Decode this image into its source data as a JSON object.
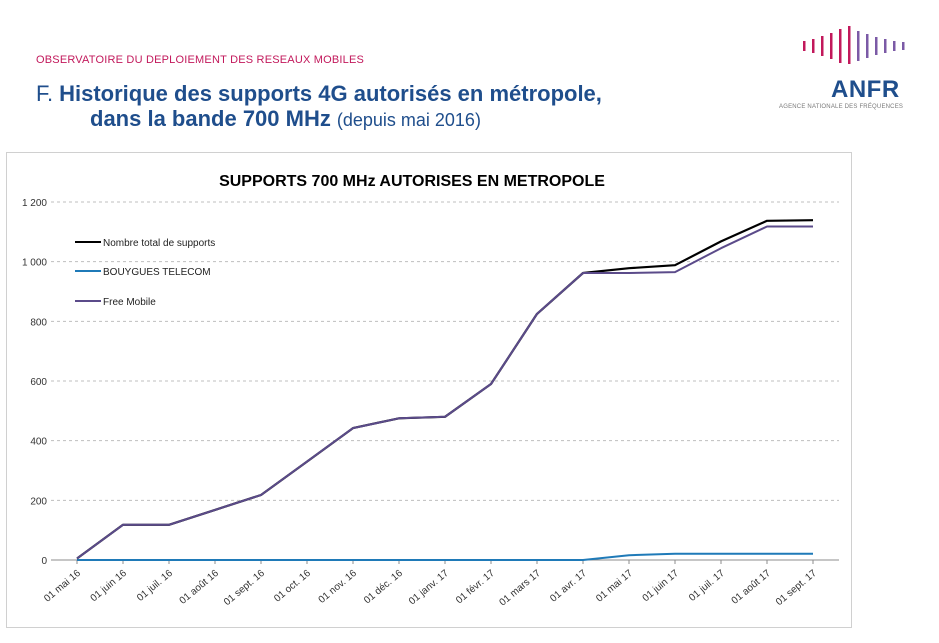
{
  "header": {
    "kicker": "OBSERVATOIRE DU DEPLOIEMENT DES RESEAUX MOBILES",
    "letter": "F.",
    "title_line1": "Historique des supports 4G autorisés en métropole,",
    "title_line2": "dans la bande 700 MHz",
    "title_suffix": "(depuis mai 2016)"
  },
  "logo": {
    "brand": "ANFR",
    "subtitle": "AGENCE NATIONALE DES FRÉQUENCES",
    "bar_color_left": "#c2185b",
    "bar_color_right": "#7b5aa6"
  },
  "colors": {
    "accent": "#c2185b",
    "title": "#1f4e8c",
    "total": "#000000",
    "bouygues": "#1f7ab8",
    "free": "#5b4b8a",
    "grid": "#bfbfbf"
  },
  "chart_data": {
    "type": "line",
    "title": "SUPPORTS 700 MHz AUTORISES EN METROPOLE",
    "categories": [
      "01 mai 16",
      "01 juin 16",
      "01 juil. 16",
      "01 août 16",
      "01 sept. 16",
      "01 oct. 16",
      "01 nov. 16",
      "01 déc. 16",
      "01 janv. 17",
      "01 févr. 17",
      "01 mars 17",
      "01 avr. 17",
      "01 mai 17",
      "01 juin 17",
      "01 juil. 17",
      "01 août 17",
      "01 sept. 17"
    ],
    "series": [
      {
        "name": "Nombre total de supports",
        "color": "#000000",
        "values": [
          5,
          118,
          118,
          168,
          218,
          330,
          442,
          475,
          480,
          590,
          825,
          962,
          978,
          988,
          1068,
          1137,
          1139
        ]
      },
      {
        "name": "BOUYGUES TELECOM",
        "color": "#1f7ab8",
        "values": [
          0,
          0,
          0,
          0,
          0,
          0,
          0,
          0,
          0,
          0,
          0,
          0,
          16,
          21,
          21,
          21,
          21
        ]
      },
      {
        "name": "Free Mobile",
        "color": "#5b4b8a",
        "values": [
          5,
          118,
          118,
          168,
          218,
          330,
          442,
          475,
          480,
          590,
          825,
          962,
          962,
          965,
          1045,
          1118,
          1118
        ]
      }
    ],
    "yticks": [
      "0",
      "200",
      "400",
      "600",
      "800",
      "1 000",
      "1 200"
    ],
    "ylim": [
      0,
      1200
    ],
    "grid": true,
    "legend_position": "top-left"
  }
}
